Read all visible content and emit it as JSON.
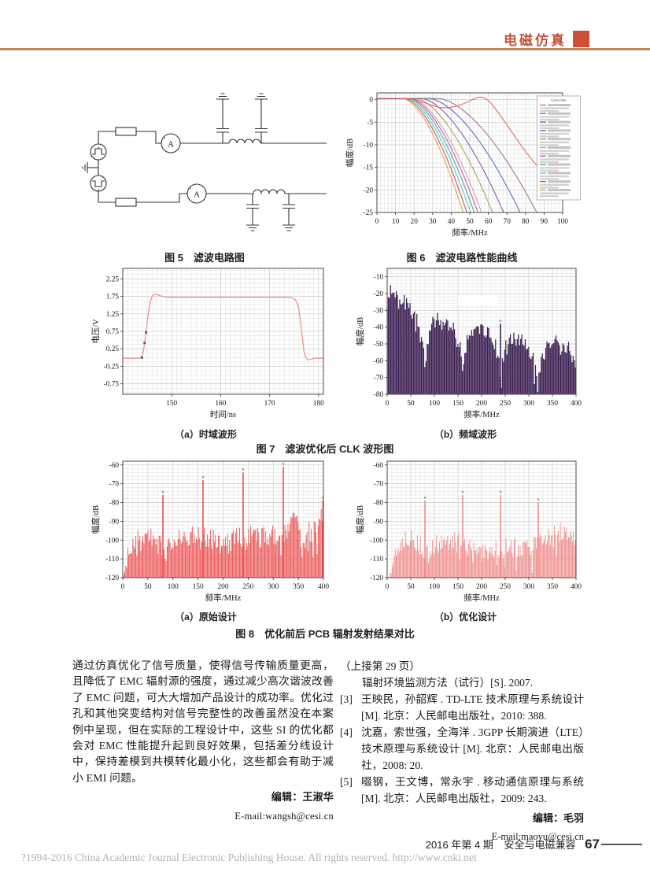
{
  "header": {
    "section_label": "电磁仿真",
    "accent_color": "#c2543a",
    "square_color": "#cd4f35",
    "rule_color": "#bf8a58"
  },
  "figures": {
    "fig5": {
      "caption": "图 5　滤波电路图",
      "ammeter_label": "A",
      "plus_label": "+"
    },
    "fig6": {
      "caption": "图 6　滤波电路性能曲线"
    },
    "fig7": {
      "caption": "图 7　滤波优化后 CLK 波形图",
      "sub_a": "（a）时域波形",
      "sub_b": "（b）频域波形"
    },
    "fig8": {
      "caption": "图 8　优化前后 PCB 辐射发射结果对比",
      "sub_a": "（a）原始设计",
      "sub_b": "（b）优化设计"
    }
  },
  "chart_data": [
    {
      "id": "fig6",
      "type": "line",
      "title": "滤波电路性能曲线",
      "xlabel": "频率/MHz",
      "ylabel": "幅度/dB",
      "xlim": [
        0,
        100
      ],
      "ylim": [
        -25,
        1.5
      ],
      "xticks": [
        0,
        10,
        20,
        30,
        40,
        50,
        60,
        70,
        80,
        90,
        100
      ],
      "yticks": [
        0,
        -5,
        -10,
        -15,
        -20,
        -25
      ],
      "grid": true,
      "legend_position": "right-inside",
      "legend_title": "Curve Info",
      "legend_text_illegible": true,
      "series": [
        {
          "name": "lowpass-fc47",
          "color": "#e59a4e",
          "rolloff_start": 14,
          "f_at_minus25": 47
        },
        {
          "name": "lowpass-fc49",
          "color": "#c05a48",
          "rolloff_start": 15,
          "f_at_minus25": 49
        },
        {
          "name": "lowpass-fc51",
          "color": "#62c3d4",
          "rolloff_start": 16,
          "f_at_minus25": 51
        },
        {
          "name": "lowpass-fc53",
          "color": "#4da493",
          "rolloff_start": 17,
          "f_at_minus25": 53
        },
        {
          "name": "lowpass-fc55",
          "color": "#c657a5",
          "rolloff_start": 18,
          "f_at_minus25": 55
        },
        {
          "name": "lowpass-fc57",
          "color": "#df93b6",
          "rolloff_start": 19,
          "f_at_minus25": 57
        },
        {
          "name": "lowpass-fc63",
          "color": "#a3a344",
          "rolloff_start": 21,
          "f_at_minus25": 63
        },
        {
          "name": "lowpass-fc69",
          "color": "#8456a8",
          "rolloff_start": 24,
          "f_at_minus25": 69
        },
        {
          "name": "lowpass-fc78",
          "color": "#5565bd",
          "rolloff_start": 28,
          "f_at_minus25": 78
        },
        {
          "name": "lowpass-fc87",
          "color": "#9f6f8d",
          "rolloff_start": 33,
          "f_at_minus25": 87
        },
        {
          "name": "lowpass-resonant",
          "color": "#e6645a",
          "points": [
            [
              0,
              0.3
            ],
            [
              10,
              0.3
            ],
            [
              15,
              0.25
            ],
            [
              20,
              0.05
            ],
            [
              25,
              -0.6
            ],
            [
              30,
              -1.35
            ],
            [
              34,
              -1.75
            ],
            [
              38,
              -1.8
            ],
            [
              42,
              -1.55
            ],
            [
              46,
              -1.0
            ],
            [
              50,
              -0.3
            ],
            [
              53,
              0.3
            ],
            [
              55,
              0.55
            ],
            [
              57,
              0.5
            ],
            [
              59,
              0.1
            ],
            [
              61,
              -0.6
            ],
            [
              63,
              -1.6
            ],
            [
              66,
              -3.2
            ],
            [
              69,
              -5.0
            ],
            [
              72,
              -6.8
            ],
            [
              76,
              -9.2
            ],
            [
              80,
              -11.5
            ],
            [
              84,
              -13.6
            ],
            [
              88,
              -15.5
            ],
            [
              92,
              -17.3
            ],
            [
              96,
              -19.0
            ],
            [
              98,
              -19.8
            ]
          ]
        }
      ],
      "legend_colors": [
        "#e6645a",
        "#9f6f8d",
        "#5565bd",
        "#8456a8",
        "#a3a344",
        "#df93b6",
        "#c657a5",
        "#4da493",
        "#62c3d4",
        "#c05a48",
        "#e59a4e"
      ]
    },
    {
      "id": "fig7a",
      "type": "line",
      "title": "时域波形",
      "xlabel": "时间/ns",
      "ylabel": "电压/V",
      "xlim": [
        140,
        181
      ],
      "ylim": [
        -1.05,
        2.55
      ],
      "xticks": [
        150,
        160,
        170,
        180
      ],
      "yticks": [
        2.25,
        1.75,
        1.25,
        0.75,
        0.25,
        -0.25,
        -0.75
      ],
      "grid": true,
      "series": [
        {
          "name": "clk-pulse",
          "color": "#f39898",
          "points": [
            [
              140,
              -0.02
            ],
            [
              143,
              -0.02
            ],
            [
              143.6,
              -0.01
            ],
            [
              144,
              0.05
            ],
            [
              144.4,
              0.35
            ],
            [
              144.8,
              0.8
            ],
            [
              145.2,
              1.25
            ],
            [
              145.6,
              1.58
            ],
            [
              146,
              1.75
            ],
            [
              146.5,
              1.81
            ],
            [
              147,
              1.8
            ],
            [
              147.8,
              1.76
            ],
            [
              148.6,
              1.73
            ],
            [
              150,
              1.72
            ],
            [
              160,
              1.72
            ],
            [
              170,
              1.72
            ],
            [
              173,
              1.72
            ],
            [
              174.5,
              1.71
            ],
            [
              175.3,
              1.66
            ],
            [
              175.9,
              1.45
            ],
            [
              176.3,
              1.05
            ],
            [
              176.7,
              0.55
            ],
            [
              177,
              0.2
            ],
            [
              177.4,
              0.0
            ],
            [
              177.8,
              -0.07
            ],
            [
              178.4,
              -0.05
            ],
            [
              179.2,
              -0.02
            ],
            [
              181,
              -0.02
            ]
          ]
        }
      ],
      "markers": [
        [
          143.9,
          0.0
        ],
        [
          144.45,
          0.42
        ],
        [
          144.75,
          0.72
        ]
      ]
    },
    {
      "id": "fig7b",
      "type": "bar-spectrum",
      "title": "频域波形",
      "xlabel": "频率/MHz",
      "ylabel": "幅度/dB",
      "xlim": [
        0,
        400
      ],
      "ylim": [
        -80,
        -5
      ],
      "xticks": [
        0,
        50,
        100,
        150,
        200,
        250,
        300,
        350,
        400
      ],
      "yticks": [
        -10,
        -20,
        -30,
        -40,
        -50,
        -60,
        -70,
        -80
      ],
      "grid": true,
      "color": "#3d2153",
      "baseline": -80,
      "jitter": 9,
      "envelope": [
        [
          0,
          -24
        ],
        [
          2,
          -17
        ],
        [
          6,
          -14
        ],
        [
          12,
          -15
        ],
        [
          20,
          -17
        ],
        [
          30,
          -19
        ],
        [
          40,
          -21
        ],
        [
          50,
          -25
        ],
        [
          60,
          -29
        ],
        [
          70,
          -38
        ],
        [
          78,
          -50
        ],
        [
          80,
          -56
        ],
        [
          84,
          -48
        ],
        [
          90,
          -38
        ],
        [
          100,
          -32
        ],
        [
          110,
          -30
        ],
        [
          120,
          -31
        ],
        [
          130,
          -33
        ],
        [
          140,
          -36
        ],
        [
          150,
          -42
        ],
        [
          156,
          -50
        ],
        [
          160,
          -58
        ],
        [
          164,
          -50
        ],
        [
          172,
          -42
        ],
        [
          180,
          -39
        ],
        [
          190,
          -37
        ],
        [
          200,
          -37
        ],
        [
          210,
          -38
        ],
        [
          220,
          -41
        ],
        [
          228,
          -45
        ],
        [
          235,
          -52
        ],
        [
          240,
          -63
        ],
        [
          245,
          -54
        ],
        [
          252,
          -47
        ],
        [
          260,
          -44
        ],
        [
          270,
          -42
        ],
        [
          280,
          -42
        ],
        [
          290,
          -44
        ],
        [
          300,
          -48
        ],
        [
          310,
          -54
        ],
        [
          316,
          -60
        ],
        [
          320,
          -70
        ],
        [
          325,
          -60
        ],
        [
          332,
          -52
        ],
        [
          340,
          -48
        ],
        [
          350,
          -45
        ],
        [
          360,
          -44
        ],
        [
          370,
          -45
        ],
        [
          380,
          -47
        ],
        [
          390,
          -50
        ],
        [
          396,
          -55
        ],
        [
          400,
          -62
        ]
      ],
      "spikes": [
        [
          240,
          -38
        ]
      ],
      "white_patch": {
        "x1": 150,
        "x2": 235,
        "y1": -21.8,
        "y2": -27
      }
    },
    {
      "id": "fig8a",
      "type": "bar-spectrum",
      "title": "原始设计",
      "xlabel": "频率/MHz",
      "ylabel": "幅度/dB",
      "xlim": [
        0,
        400
      ],
      "ylim": [
        -120,
        -58
      ],
      "xticks": [
        0,
        50,
        100,
        150,
        200,
        250,
        300,
        350,
        400
      ],
      "yticks": [
        -60,
        -70,
        -80,
        -90,
        -100,
        -110,
        -120
      ],
      "grid": true,
      "color": "#ed5050",
      "baseline": -120,
      "jitter": 13,
      "envelope": [
        [
          0,
          -119
        ],
        [
          4,
          -112
        ],
        [
          8,
          -104
        ],
        [
          14,
          -100
        ],
        [
          20,
          -98
        ],
        [
          30,
          -94
        ],
        [
          40,
          -91
        ],
        [
          50,
          -91
        ],
        [
          60,
          -93
        ],
        [
          70,
          -95
        ],
        [
          80,
          -97
        ],
        [
          90,
          -99
        ],
        [
          100,
          -97
        ],
        [
          110,
          -94
        ],
        [
          120,
          -92
        ],
        [
          130,
          -92
        ],
        [
          140,
          -92
        ],
        [
          150,
          -93
        ],
        [
          160,
          -93
        ],
        [
          170,
          -94
        ],
        [
          180,
          -93
        ],
        [
          190,
          -94
        ],
        [
          200,
          -95
        ],
        [
          210,
          -96
        ],
        [
          220,
          -95
        ],
        [
          230,
          -93
        ],
        [
          240,
          -92
        ],
        [
          250,
          -91
        ],
        [
          260,
          -91
        ],
        [
          270,
          -92
        ],
        [
          280,
          -92
        ],
        [
          290,
          -91
        ],
        [
          300,
          -91
        ],
        [
          310,
          -90
        ],
        [
          320,
          -90
        ],
        [
          330,
          -87
        ],
        [
          340,
          -84
        ],
        [
          350,
          -86
        ],
        [
          360,
          -89
        ],
        [
          370,
          -90
        ],
        [
          380,
          -89
        ],
        [
          390,
          -88
        ],
        [
          398,
          -80
        ]
      ],
      "spikes": [
        [
          80,
          -76
        ],
        [
          160,
          -68
        ],
        [
          240,
          -64
        ],
        [
          320,
          -61
        ],
        [
          399,
          -79
        ]
      ]
    },
    {
      "id": "fig8b",
      "type": "bar-spectrum",
      "title": "优化设计",
      "xlabel": "频率/MHz",
      "ylabel": "幅度/dB",
      "xlim": [
        0,
        400
      ],
      "ylim": [
        -120,
        -58
      ],
      "xticks": [
        0,
        50,
        100,
        150,
        200,
        250,
        300,
        350,
        400
      ],
      "yticks": [
        -60,
        -70,
        -80,
        -90,
        -100,
        -110,
        -120
      ],
      "grid": true,
      "color": "#f28b8b",
      "baseline": -120,
      "jitter": 11,
      "envelope": [
        [
          0,
          -120
        ],
        [
          4,
          -115
        ],
        [
          8,
          -108
        ],
        [
          14,
          -102
        ],
        [
          20,
          -99
        ],
        [
          30,
          -96
        ],
        [
          40,
          -92
        ],
        [
          50,
          -94
        ],
        [
          60,
          -96
        ],
        [
          70,
          -98
        ],
        [
          80,
          -99
        ],
        [
          90,
          -98
        ],
        [
          100,
          -97
        ],
        [
          110,
          -96
        ],
        [
          120,
          -96
        ],
        [
          130,
          -95
        ],
        [
          140,
          -95
        ],
        [
          150,
          -96
        ],
        [
          160,
          -97
        ],
        [
          170,
          -99
        ],
        [
          180,
          -100
        ],
        [
          190,
          -99
        ],
        [
          200,
          -99
        ],
        [
          210,
          -100
        ],
        [
          220,
          -100
        ],
        [
          230,
          -100
        ],
        [
          240,
          -99
        ],
        [
          250,
          -99
        ],
        [
          260,
          -98
        ],
        [
          270,
          -99
        ],
        [
          280,
          -98
        ],
        [
          290,
          -98
        ],
        [
          300,
          -97
        ],
        [
          310,
          -97
        ],
        [
          320,
          -96
        ],
        [
          330,
          -95
        ],
        [
          340,
          -94
        ],
        [
          350,
          -93
        ],
        [
          360,
          -91
        ],
        [
          370,
          -89
        ],
        [
          375,
          -88
        ],
        [
          380,
          -88
        ],
        [
          385,
          -90
        ],
        [
          390,
          -92
        ],
        [
          395,
          -93
        ],
        [
          400,
          -94
        ]
      ],
      "spikes": [
        [
          80,
          -79
        ],
        [
          160,
          -76
        ],
        [
          240,
          -76
        ],
        [
          320,
          -80
        ]
      ]
    }
  ],
  "body": {
    "paragraph": "通过仿真优化了信号质量，使得信号传输质量更高，且降低了 EMC 辐射源的强度，通过减少高次谐波改善了 EMC 问题，可大大增加产品设计的成功率。优化过孔和其他突变结构对信号完整性的改善虽然没在本案例中呈现，但在实际的工程设计中，这些 SI 的优化都会对 EMC 性能提升起到良好效果，包括差分线设计中，保持差模到共模转化最小化，这些都会有助于减小 EMI 问题。",
    "editor": "编辑：王淑华",
    "email": "E-mail:wangsh@cesi.cn"
  },
  "references": {
    "continued_from": "（上接第 29 页）",
    "items": [
      {
        "label": "",
        "text": "辐射环境监测方法（试行）[S]. 2007."
      },
      {
        "label": "[3]",
        "text": "王映民，孙韶辉 . TD-LTE 技术原理与系统设计 [M]. 北京：人民邮电出版社，2010: 388."
      },
      {
        "label": "[4]",
        "text": "沈嘉，索世强，全海洋 . 3GPP 长期演进（LTE）技术原理与系统设计 [M]. 北京：人民邮电出版社，2008: 20."
      },
      {
        "label": "[5]",
        "text": "啜钢，王文博，常永宇 . 移动通信原理与系统 [M]. 北京：人民邮电出版社，2009: 243."
      }
    ],
    "editor": "编辑：毛羽",
    "email": "E-mail:maoyu@cesi.cn"
  },
  "footer": {
    "issue": "2016 年第 4 期",
    "journal": "安全与电磁兼容",
    "page_number": "67",
    "copyright": "?1994-2016 China Academic Journal Electronic Publishing House. All rights reserved.    http://www.cnki.net"
  }
}
